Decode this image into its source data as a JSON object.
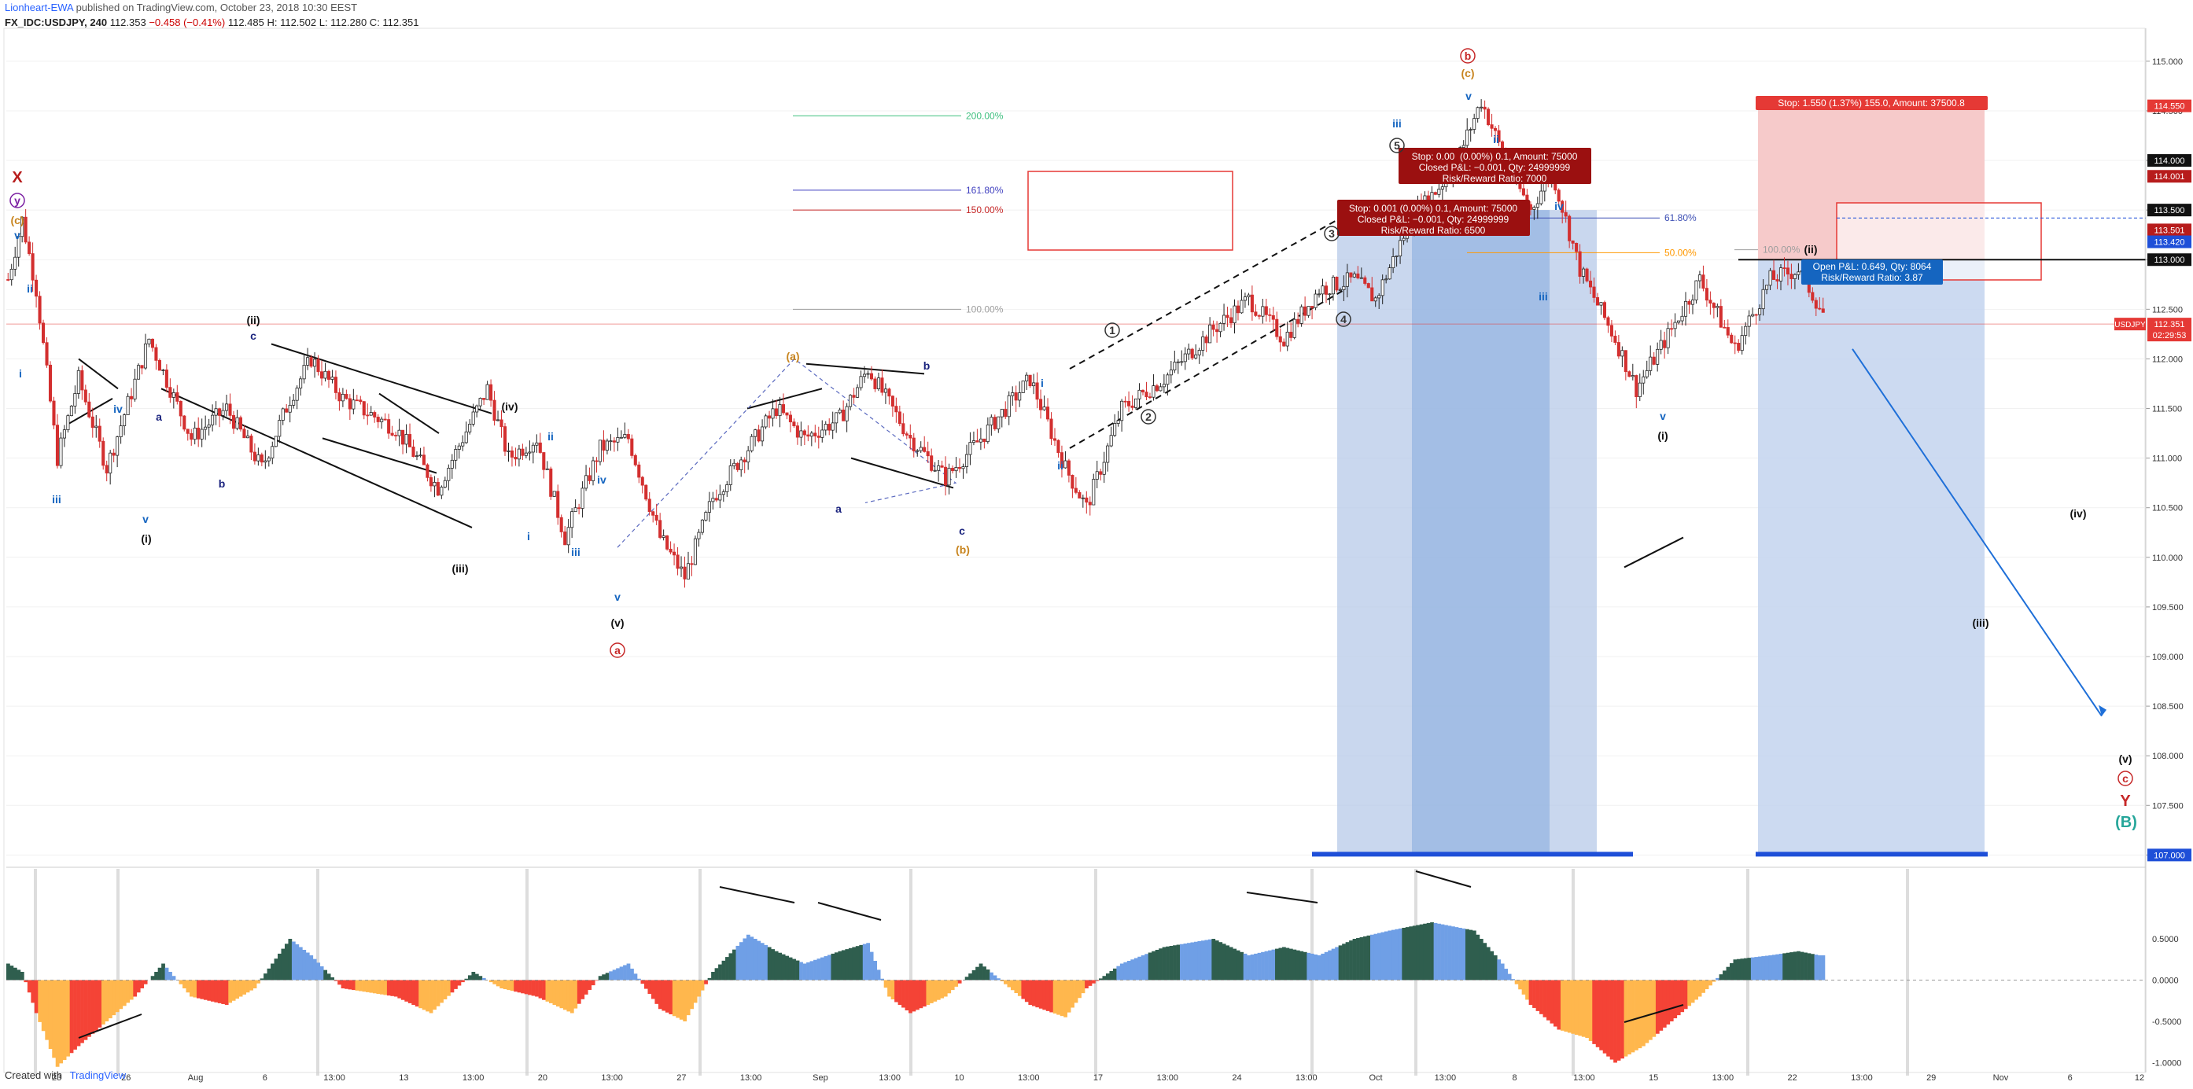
{
  "header": {
    "author": "Lionheart-EWA",
    "published": "published on TradingView.com, October 23, 2018 10:30 EEST",
    "symbol": "FX_IDC:USDJPY, 240",
    "last": "112.353",
    "change": "−0.458 (−0.41%)",
    "ohlc": "112.485 H: 112.502 L: 112.280 C: 112.351"
  },
  "footer": {
    "created": "Created with",
    "brand": "TradingView"
  },
  "chart_data": {
    "type": "candlestick",
    "symbol": "USDJPY",
    "timeframe": "240",
    "ylim": [
      106.9,
      115.3
    ],
    "price_ticks": [
      "115.000",
      "114.500",
      "114.000",
      "113.500",
      "113.000",
      "112.500",
      "112.000",
      "111.500",
      "111.000",
      "110.500",
      "110.000",
      "109.500",
      "109.000",
      "108.500",
      "108.000",
      "107.500",
      "107.000"
    ],
    "x_ticks": [
      "23",
      "26",
      "Aug",
      "6",
      "13:00",
      "13",
      "13:00",
      "20",
      "13:00",
      "27",
      "13:00",
      "Sep",
      "13:00",
      "10",
      "13:00",
      "17",
      "13:00",
      "24",
      "13:00",
      "Oct",
      "13:00",
      "8",
      "13:00",
      "15",
      "13:00",
      "22",
      "13:00",
      "29",
      "Nov",
      "6",
      "12"
    ],
    "oscillator_ticks": [
      "0.5000",
      "0.0000",
      "-0.5000",
      "-1.0000"
    ],
    "price_path": [
      [
        0,
        112.8
      ],
      [
        4,
        113.4
      ],
      [
        8,
        112.7
      ],
      [
        14,
        111.0
      ],
      [
        20,
        111.8
      ],
      [
        28,
        110.9
      ],
      [
        40,
        112.2
      ],
      [
        52,
        111.2
      ],
      [
        62,
        111.5
      ],
      [
        72,
        110.9
      ],
      [
        80,
        111.6
      ],
      [
        86,
        112.0
      ],
      [
        95,
        111.6
      ],
      [
        110,
        111.3
      ],
      [
        122,
        110.7
      ],
      [
        136,
        111.7
      ],
      [
        142,
        111.0
      ],
      [
        150,
        111.2
      ],
      [
        158,
        110.2
      ],
      [
        168,
        111.1
      ],
      [
        176,
        111.2
      ],
      [
        185,
        110.2
      ],
      [
        192,
        109.8
      ],
      [
        200,
        110.6
      ],
      [
        210,
        111.1
      ],
      [
        218,
        111.5
      ],
      [
        226,
        111.2
      ],
      [
        236,
        111.4
      ],
      [
        244,
        111.9
      ],
      [
        256,
        111.2
      ],
      [
        266,
        110.8
      ],
      [
        276,
        111.2
      ],
      [
        290,
        111.8
      ],
      [
        300,
        110.9
      ],
      [
        306,
        110.5
      ],
      [
        316,
        111.5
      ],
      [
        328,
        111.8
      ],
      [
        342,
        112.3
      ],
      [
        352,
        112.6
      ],
      [
        362,
        112.2
      ],
      [
        372,
        112.7
      ],
      [
        382,
        112.8
      ],
      [
        388,
        112.6
      ],
      [
        398,
        113.4
      ],
      [
        410,
        113.9
      ],
      [
        418,
        114.6
      ],
      [
        426,
        113.9
      ],
      [
        432,
        113.5
      ],
      [
        438,
        113.9
      ],
      [
        446,
        112.9
      ],
      [
        456,
        112.2
      ],
      [
        462,
        111.7
      ],
      [
        472,
        112.3
      ],
      [
        480,
        112.8
      ],
      [
        490,
        112.1
      ],
      [
        500,
        112.8
      ],
      [
        508,
        112.9
      ],
      [
        516,
        112.4
      ]
    ],
    "current_price": "112.351",
    "countdown": "02:29:53",
    "price_labels": [
      {
        "price": "114.550",
        "color": "#e53935"
      },
      {
        "price": "114.000",
        "color": "#111111"
      },
      {
        "price": "114.001",
        "color": "#b71c1c"
      },
      {
        "price": "113.500",
        "color": "#111111"
      },
      {
        "price": "113.501",
        "color": "#b71c1c"
      },
      {
        "price": "113.420",
        "color": "#1e4fd8"
      },
      {
        "price": "113.000",
        "color": "#111111"
      },
      {
        "price": "107.000",
        "color": "#1e4fd8"
      }
    ],
    "fib_left": [
      {
        "pct": "200.00%",
        "color": "#3fbf7f"
      },
      {
        "pct": "161.80%",
        "color": "#3f3fbf"
      },
      {
        "pct": "150.00%",
        "color": "#c62828"
      },
      {
        "pct": "100.00%",
        "color": "#9e9e9e"
      }
    ],
    "fib_right": [
      {
        "pct": "61.80%",
        "color": "#3f51b5"
      },
      {
        "pct": "50.00%",
        "color": "#ff9800"
      },
      {
        "pct": "100.00%",
        "color": "#9e9e9e"
      }
    ],
    "positions": {
      "stop_top": "Stop: 1.550 (1.37%) 155.0, Amount: 37500.8",
      "open_pl": "Open P&L: 0.649, Qty: 8064",
      "open_rr": "Risk/Reward Ratio: 3.87",
      "closed1_a": "Stop: 0.00 (0.00%) 0.1, Amount: 75000",
      "closed1_b": "Closed P&L: −0.001, Qty: 24999999",
      "closed1_c": "Risk/Reward Ratio: 7000",
      "closed2_a": "Stop: 0.001 (0.00%) 0.1, Amount: 75000",
      "closed2_b": "Closed P&L: −0.001, Qty: 24999999",
      "closed2_c": "Risk/Reward Ratio: 6500"
    },
    "wave_labels": [
      {
        "t": "X",
        "c": "#b71c1c"
      },
      {
        "t": "y",
        "c": "#7b1fa2"
      },
      {
        "t": "(c)",
        "c": "#c8851f"
      },
      {
        "t": "v",
        "c": "#1565c0"
      },
      {
        "t": "ii",
        "c": "#1565c0"
      },
      {
        "t": "i",
        "c": "#1565c0"
      },
      {
        "t": "iii",
        "c": "#1565c0"
      },
      {
        "t": "iv",
        "c": "#1565c0"
      },
      {
        "t": "v",
        "c": "#1565c0"
      },
      {
        "t": "(i)",
        "c": "#111"
      },
      {
        "t": "a",
        "c": "#1a237e"
      },
      {
        "t": "b",
        "c": "#1a237e"
      },
      {
        "t": "c",
        "c": "#1a237e"
      },
      {
        "t": "(ii)",
        "c": "#111"
      },
      {
        "t": "(iii)",
        "c": "#111"
      },
      {
        "t": "(iv)",
        "c": "#111"
      },
      {
        "t": "ii",
        "c": "#1565c0"
      },
      {
        "t": "i",
        "c": "#1565c0"
      },
      {
        "t": "iii",
        "c": "#1565c0"
      },
      {
        "t": "iv",
        "c": "#1565c0"
      },
      {
        "t": "v",
        "c": "#1565c0"
      },
      {
        "t": "(v)",
        "c": "#111"
      },
      {
        "t": "a",
        "c": "#c62828"
      },
      {
        "t": "(a)",
        "c": "#c8851f"
      },
      {
        "t": "a",
        "c": "#1a237e"
      },
      {
        "t": "b",
        "c": "#1a237e"
      },
      {
        "t": "c",
        "c": "#1a237e"
      },
      {
        "t": "(b)",
        "c": "#c8851f"
      },
      {
        "t": "i",
        "c": "#1565c0"
      },
      {
        "t": "ii",
        "c": "#1565c0"
      },
      {
        "t": "1",
        "c": "#333"
      },
      {
        "t": "2",
        "c": "#333"
      },
      {
        "t": "3",
        "c": "#333"
      },
      {
        "t": "4",
        "c": "#333"
      },
      {
        "t": "5",
        "c": "#333"
      },
      {
        "t": "iii",
        "c": "#1565c0"
      },
      {
        "t": "b",
        "c": "#c62828"
      },
      {
        "t": "(c)",
        "c": "#c8851f"
      },
      {
        "t": "v",
        "c": "#1565c0"
      },
      {
        "t": "ii",
        "c": "#1565c0"
      },
      {
        "t": "iv",
        "c": "#1565c0"
      },
      {
        "t": "iii",
        "c": "#1565c0"
      },
      {
        "t": "v",
        "c": "#1565c0"
      },
      {
        "t": "(i)",
        "c": "#111"
      },
      {
        "t": "(ii)",
        "c": "#111"
      },
      {
        "t": "(iii)",
        "c": "#111"
      },
      {
        "t": "(iv)",
        "c": "#111"
      },
      {
        "t": "(v)",
        "c": "#111"
      },
      {
        "t": "c",
        "c": "#c62828"
      },
      {
        "t": "Y",
        "c": "#c62828"
      },
      {
        "t": "(B)",
        "c": "#26a69a"
      }
    ],
    "oscillator_path": [
      [
        0,
        0.2
      ],
      [
        4,
        0.1
      ],
      [
        8,
        -0.4
      ],
      [
        14,
        -1.05
      ],
      [
        20,
        -0.8
      ],
      [
        28,
        -0.5
      ],
      [
        36,
        -0.2
      ],
      [
        44,
        0.2
      ],
      [
        52,
        -0.2
      ],
      [
        62,
        -0.3
      ],
      [
        70,
        -0.1
      ],
      [
        80,
        0.5
      ],
      [
        86,
        0.3
      ],
      [
        95,
        -0.1
      ],
      [
        110,
        -0.2
      ],
      [
        120,
        -0.4
      ],
      [
        132,
        0.1
      ],
      [
        140,
        -0.1
      ],
      [
        150,
        -0.2
      ],
      [
        160,
        -0.4
      ],
      [
        168,
        0.05
      ],
      [
        176,
        0.2
      ],
      [
        185,
        -0.35
      ],
      [
        192,
        -0.5
      ],
      [
        200,
        0.1
      ],
      [
        210,
        0.55
      ],
      [
        218,
        0.35
      ],
      [
        226,
        0.2
      ],
      [
        236,
        0.35
      ],
      [
        244,
        0.45
      ],
      [
        250,
        -0.2
      ],
      [
        256,
        -0.4
      ],
      [
        266,
        -0.2
      ],
      [
        276,
        0.2
      ],
      [
        290,
        -0.3
      ],
      [
        300,
        -0.45
      ],
      [
        306,
        -0.1
      ],
      [
        316,
        0.2
      ],
      [
        328,
        0.4
      ],
      [
        342,
        0.5
      ],
      [
        352,
        0.3
      ],
      [
        362,
        0.4
      ],
      [
        372,
        0.3
      ],
      [
        382,
        0.5
      ],
      [
        392,
        0.6
      ],
      [
        404,
        0.7
      ],
      [
        416,
        0.6
      ],
      [
        424,
        0.2
      ],
      [
        432,
        -0.3
      ],
      [
        440,
        -0.6
      ],
      [
        448,
        -0.7
      ],
      [
        456,
        -1.0
      ],
      [
        464,
        -0.8
      ],
      [
        472,
        -0.5
      ],
      [
        480,
        -0.2
      ],
      [
        490,
        0.25
      ],
      [
        500,
        0.3
      ],
      [
        508,
        0.35
      ],
      [
        514,
        0.3
      ]
    ]
  }
}
